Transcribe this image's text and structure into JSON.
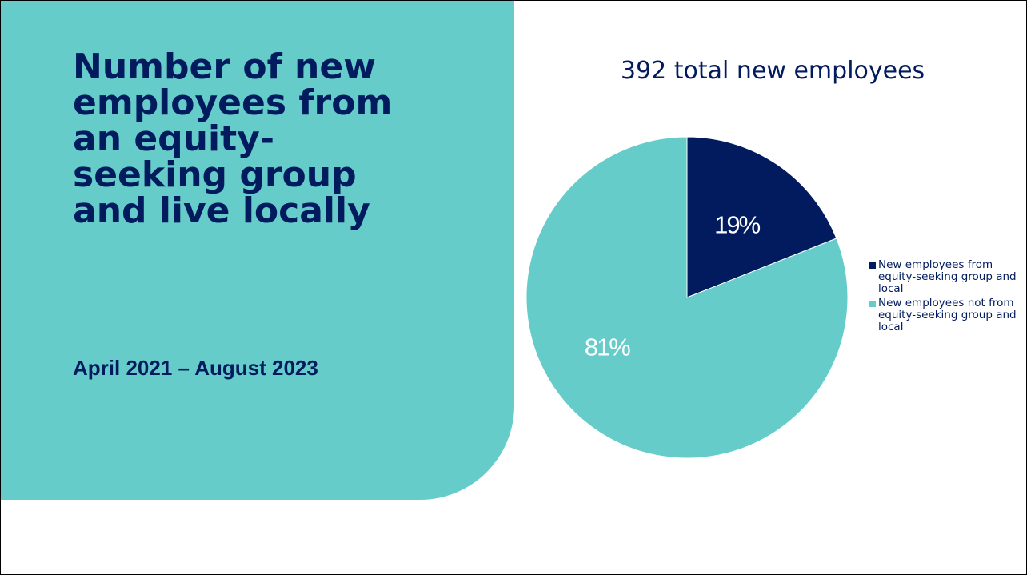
{
  "slide": {
    "title": "Number of new employees from an equity-seeking group and live locally",
    "subtitle": "April 2021 – August 2023"
  },
  "colors": {
    "navy": "#021b5e",
    "teal": "#66ccc9",
    "white": "#ffffff"
  },
  "chart_data": {
    "type": "pie",
    "title": "392 total new employees",
    "slices": [
      {
        "name": "New employees from equity-seeking group and local",
        "value": 19,
        "label": "19%",
        "color": "#021b5e"
      },
      {
        "name": "New employees not from equity-seeking group and local",
        "value": 81,
        "label": "81%",
        "color": "#66ccc9"
      }
    ],
    "legend": "right"
  }
}
